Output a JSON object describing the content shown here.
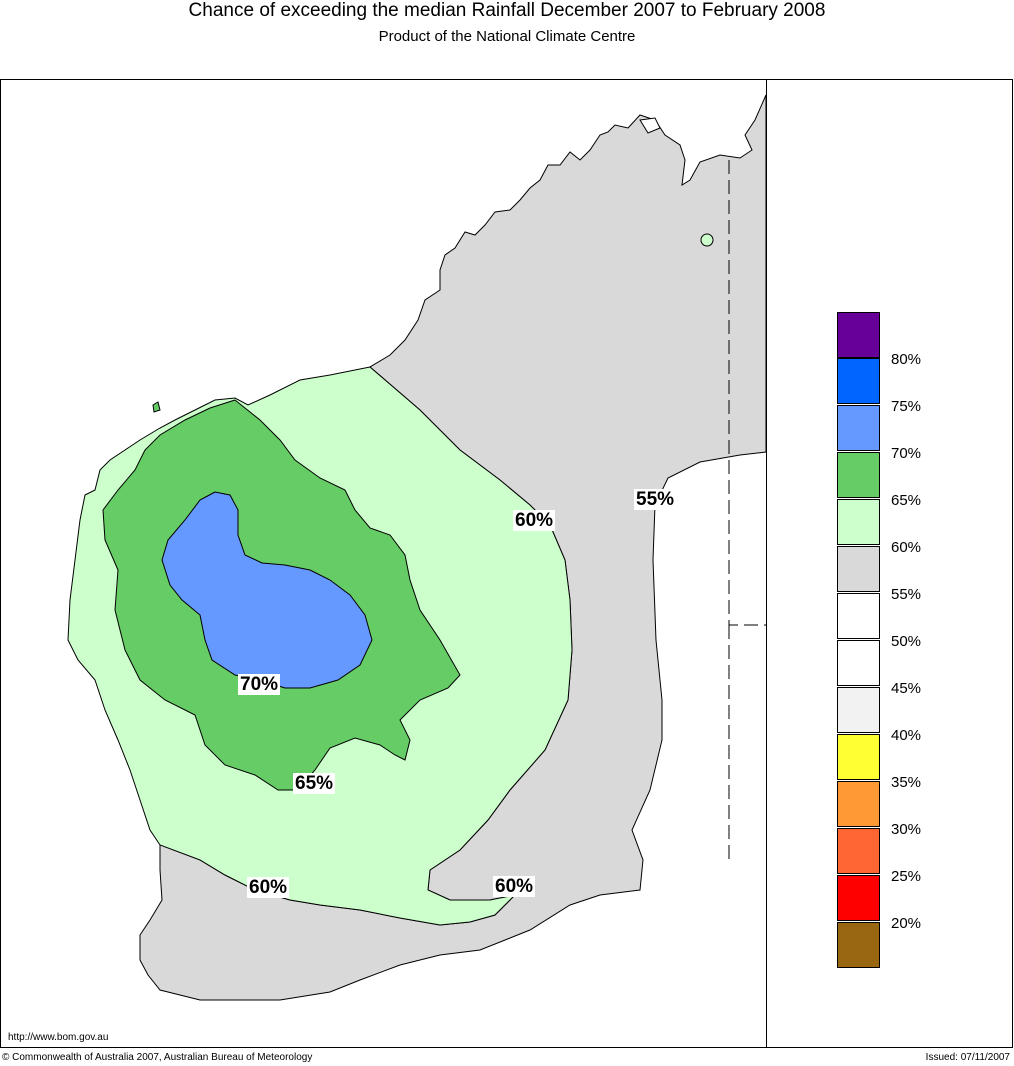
{
  "header": {
    "title": "Chance of exceeding the median Rainfall December 2007 to February 2008",
    "subtitle": "Product of the National Climate Centre"
  },
  "map": {
    "region": "Western Australia",
    "contour_labels": [
      {
        "id": "c-70",
        "text": "70%"
      },
      {
        "id": "c-65",
        "text": "65%"
      },
      {
        "id": "c-60a",
        "text": "60%"
      },
      {
        "id": "c-60b",
        "text": "60%"
      },
      {
        "id": "c-60c",
        "text": "60%"
      },
      {
        "id": "c-55",
        "text": "55%"
      }
    ],
    "colors": {
      "band_70_75": "#6699ff",
      "band_65_70": "#66cc66",
      "band_60_65": "#ccffcc",
      "band_55_60": "#d9d9d9",
      "band_50_55": "#ffffff"
    }
  },
  "legend": {
    "items": [
      {
        "color": "#660099",
        "label": "80%"
      },
      {
        "color": "#0066ff",
        "label": "75%"
      },
      {
        "color": "#6699ff",
        "label": "70%"
      },
      {
        "color": "#66cc66",
        "label": "65%"
      },
      {
        "color": "#ccffcc",
        "label": "60%"
      },
      {
        "color": "#d9d9d9",
        "label": "55%"
      },
      {
        "color": "#ffffff",
        "label": "50%"
      },
      {
        "color": "#ffffff",
        "label": "45%"
      },
      {
        "color": "#f2f2f2",
        "label": "40%"
      },
      {
        "color": "#ffff33",
        "label": "35%"
      },
      {
        "color": "#ff9933",
        "label": "30%"
      },
      {
        "color": "#ff6633",
        "label": "25%"
      },
      {
        "color": "#ff0000",
        "label": "20%"
      },
      {
        "color": "#996611",
        "label": ""
      }
    ]
  },
  "footer": {
    "url": "http://www.bom.gov.au",
    "copyright": "© Commonwealth of Australia 2007, Australian Bureau of Meteorology",
    "issued": "Issued: 07/11/2007"
  }
}
